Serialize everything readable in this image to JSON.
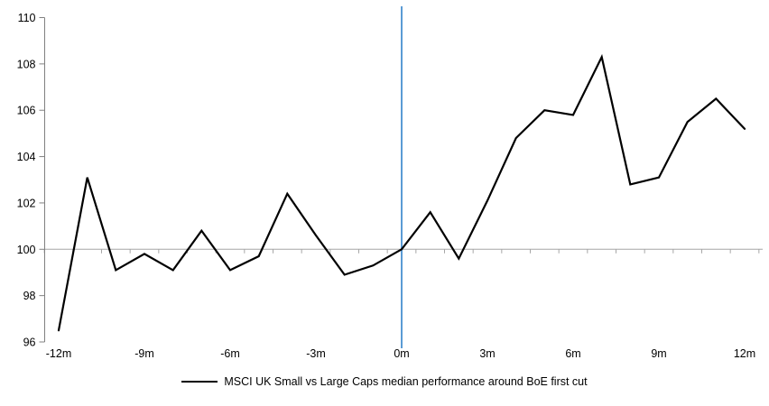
{
  "chart_data": {
    "type": "line",
    "title": "",
    "xlabel": "",
    "ylabel": "",
    "x_unit_suffix": "m",
    "x": [
      -12,
      -11,
      -10,
      -9,
      -8,
      -7,
      -6,
      -5,
      -4,
      -3,
      -2,
      -1,
      0,
      1,
      2,
      3,
      4,
      5,
      6,
      7,
      8,
      9,
      10,
      11,
      12
    ],
    "series": [
      {
        "name": "MSCI UK Small vs Large Caps median performance around BoE first cut",
        "color": "#000000",
        "values": [
          96.5,
          103.1,
          99.1,
          99.8,
          99.1,
          100.8,
          99.1,
          99.7,
          102.4,
          100.6,
          98.9,
          99.3,
          100.0,
          101.6,
          99.6,
          102.1,
          104.8,
          106.0,
          105.8,
          108.3,
          102.8,
          103.1,
          105.5,
          106.5,
          105.2
        ]
      }
    ],
    "y_ticks": [
      96,
      98,
      100,
      102,
      104,
      106,
      108,
      110
    ],
    "x_tick_labels": [
      "-12m",
      "-9m",
      "-6m",
      "-3m",
      "0m",
      "3m",
      "6m",
      "9m",
      "12m"
    ],
    "x_tick_months": [
      -12,
      -9,
      -6,
      -3,
      0,
      3,
      6,
      9,
      12
    ],
    "ylim": [
      96,
      110
    ],
    "xlim": [
      -12.5,
      12.5
    ],
    "reference_lines": {
      "horizontal_at_y": 100,
      "vertical_at_x": 0
    },
    "legend_position": "bottom-center",
    "grid": "off",
    "colors": {
      "series_line": "#000000",
      "event_vline": "#5B9BD5",
      "baseline_100": "#A6A6A6",
      "axis": "#808080",
      "tick_text": "#000000"
    }
  }
}
